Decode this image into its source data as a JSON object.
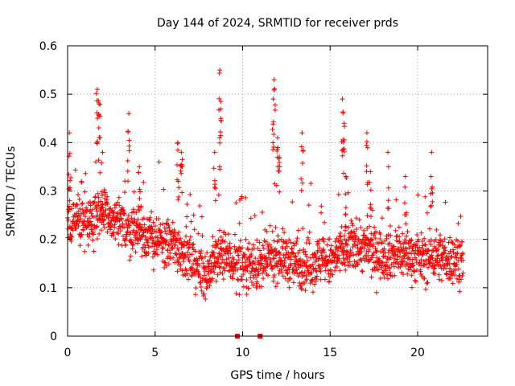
{
  "chart_data": {
    "type": "scatter",
    "title": "Day 144 of 2024, SRMTID for receiver prds",
    "xlabel": "GPS time / hours",
    "ylabel": "SRMTID / TECUs",
    "xlim": [
      0,
      24
    ],
    "ylim": [
      0,
      0.6
    ],
    "xticks": [
      0,
      5,
      10,
      15,
      20
    ],
    "yticks": [
      0,
      0.1,
      0.2,
      0.3,
      0.4,
      0.5,
      0.6
    ],
    "xtick_labels": [
      "0",
      "5",
      "10",
      "15",
      "20"
    ],
    "ytick_labels": [
      "0",
      "0.1",
      "0.2",
      "0.3",
      "0.4",
      "0.5",
      "0.6"
    ],
    "grid": true,
    "marker": "+",
    "series_color": "#ff0000",
    "zero_markers": [
      9.7,
      11.0
    ],
    "anchors": [
      [
        0.0,
        0.22
      ],
      [
        0.5,
        0.24
      ],
      [
        1.0,
        0.24
      ],
      [
        1.5,
        0.25
      ],
      [
        2.0,
        0.26
      ],
      [
        2.5,
        0.24
      ],
      [
        3.0,
        0.23
      ],
      [
        3.5,
        0.22
      ],
      [
        4.0,
        0.22
      ],
      [
        4.5,
        0.21
      ],
      [
        5.0,
        0.2
      ],
      [
        5.5,
        0.19
      ],
      [
        6.0,
        0.19
      ],
      [
        6.5,
        0.18
      ],
      [
        7.0,
        0.16
      ],
      [
        7.5,
        0.14
      ],
      [
        8.0,
        0.13
      ],
      [
        8.5,
        0.16
      ],
      [
        9.0,
        0.17
      ],
      [
        9.5,
        0.15
      ],
      [
        10.0,
        0.15
      ],
      [
        10.5,
        0.15
      ],
      [
        11.0,
        0.14
      ],
      [
        11.5,
        0.16
      ],
      [
        12.0,
        0.17
      ],
      [
        12.5,
        0.16
      ],
      [
        13.0,
        0.15
      ],
      [
        13.5,
        0.15
      ],
      [
        14.0,
        0.15
      ],
      [
        14.5,
        0.16
      ],
      [
        15.0,
        0.15
      ],
      [
        15.5,
        0.17
      ],
      [
        16.0,
        0.18
      ],
      [
        16.5,
        0.19
      ],
      [
        17.0,
        0.18
      ],
      [
        17.5,
        0.17
      ],
      [
        18.0,
        0.17
      ],
      [
        18.5,
        0.17
      ],
      [
        19.0,
        0.17
      ],
      [
        19.5,
        0.17
      ],
      [
        20.0,
        0.16
      ],
      [
        20.5,
        0.16
      ],
      [
        21.0,
        0.17
      ],
      [
        21.5,
        0.16
      ],
      [
        22.0,
        0.16
      ],
      [
        22.6,
        0.16
      ]
    ],
    "peaks": [
      [
        0.1,
        0.42
      ],
      [
        1.7,
        0.51
      ],
      [
        1.8,
        0.48
      ],
      [
        2.0,
        0.38
      ],
      [
        3.5,
        0.46
      ],
      [
        6.3,
        0.4
      ],
      [
        8.4,
        0.38
      ],
      [
        8.7,
        0.55
      ],
      [
        8.75,
        0.45
      ],
      [
        11.8,
        0.53
      ],
      [
        11.75,
        0.49
      ],
      [
        12.0,
        0.41
      ],
      [
        13.4,
        0.42
      ],
      [
        15.7,
        0.49
      ],
      [
        15.8,
        0.44
      ],
      [
        17.1,
        0.42
      ],
      [
        17.3,
        0.34
      ],
      [
        18.3,
        0.38
      ],
      [
        19.3,
        0.33
      ],
      [
        20.8,
        0.38
      ],
      [
        12.1,
        0.37
      ],
      [
        4.1,
        0.35
      ],
      [
        6.5,
        0.38
      ],
      [
        15.9,
        0.33
      ]
    ]
  }
}
